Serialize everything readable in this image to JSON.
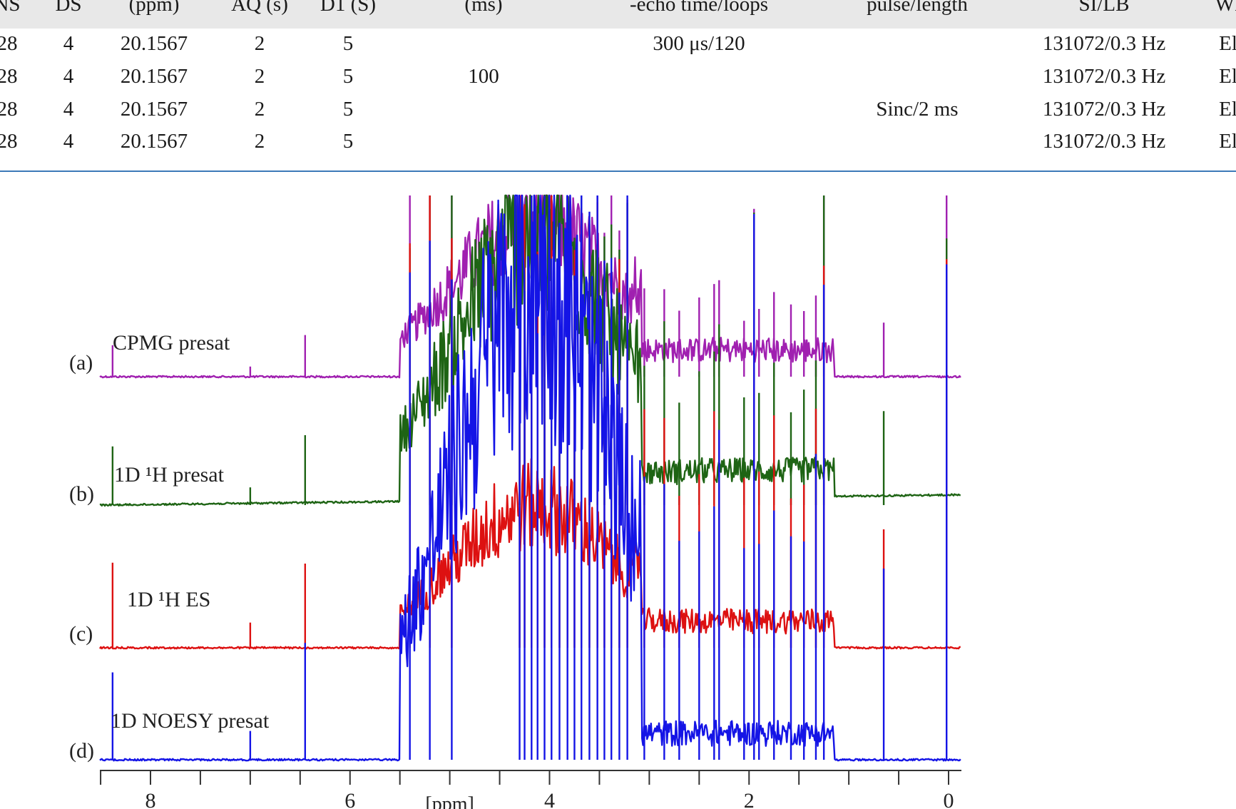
{
  "table": {
    "headers": [
      "NS",
      "DS",
      "(ppm)",
      "AQ (s)",
      "D1 (S)",
      "(ms)",
      "-echo time/loops",
      "pulse/length",
      "SI/LB",
      "WI"
    ],
    "rows": [
      [
        "28",
        "4",
        "20.1567",
        "2",
        "5",
        "",
        "300 μs/120",
        "",
        "131072/0.3 Hz",
        "El"
      ],
      [
        "28",
        "4",
        "20.1567",
        "2",
        "5",
        "100",
        "",
        "",
        "131072/0.3 Hz",
        "El"
      ],
      [
        "28",
        "4",
        "20.1567",
        "2",
        "5",
        "",
        "",
        "Sinc/2 ms",
        "131072/0.3 Hz",
        "El"
      ],
      [
        "28",
        "4",
        "20.1567",
        "2",
        "5",
        "",
        "",
        "",
        "131072/0.3 Hz",
        "El"
      ]
    ]
  },
  "figure": {
    "colors": {
      "a": "#a020b0",
      "b": "#1e6414",
      "c": "#dd1111",
      "d": "#1414e6",
      "axis": "#333333",
      "rule": "#3d7ab8"
    }
  },
  "chart_data": {
    "type": "line",
    "x_axis": {
      "label": "[ppm]",
      "range": [
        8.5,
        -0.1
      ],
      "ticks": [
        "8",
        "6",
        "4",
        "2",
        "0"
      ],
      "reversed": true
    },
    "series": [
      {
        "id": "a",
        "label": "(a)",
        "name": "CPMG presat",
        "color": "#a020b0",
        "peaks_ppm": [
          8.4,
          7.0,
          6.5,
          5.4,
          5.2,
          5.0,
          4.8,
          4.6,
          4.3,
          4.2,
          4.1,
          4.0,
          3.9,
          3.8,
          3.7,
          3.6,
          3.5,
          3.4,
          3.3,
          3.2,
          3.0,
          2.8,
          2.6,
          2.4,
          2.2,
          2.0,
          1.9,
          1.8,
          1.6,
          1.4,
          1.3,
          0.6,
          0.0
        ]
      },
      {
        "id": "b",
        "label": "(b)",
        "name": "1D ¹H presat",
        "color": "#1e6414",
        "peaks_ppm": [
          8.4,
          7.0,
          6.5,
          5.4,
          5.2,
          5.0,
          4.8,
          4.6,
          4.3,
          4.2,
          4.1,
          4.0,
          3.9,
          3.8,
          3.7,
          3.6,
          3.5,
          3.4,
          3.3,
          3.2,
          3.0,
          2.8,
          2.6,
          2.4,
          2.2,
          2.0,
          1.9,
          1.8,
          1.6,
          1.4,
          1.3,
          0.6,
          0.0
        ]
      },
      {
        "id": "c",
        "label": "(c)",
        "name": "1D ¹H ES",
        "color": "#dd1111",
        "peaks_ppm": [
          8.4,
          7.0,
          6.5,
          5.4,
          5.2,
          5.0,
          4.8,
          4.6,
          4.3,
          4.2,
          4.1,
          4.0,
          3.9,
          3.8,
          3.7,
          3.6,
          3.5,
          3.4,
          3.3,
          3.2,
          3.0,
          2.8,
          2.6,
          2.4,
          2.2,
          2.0,
          1.9,
          1.8,
          1.6,
          1.4,
          1.3,
          0.6,
          0.0
        ]
      },
      {
        "id": "d",
        "label": "(d)",
        "name": "1D NOESY presat",
        "color": "#1414e6",
        "peaks_ppm": [
          8.4,
          7.0,
          6.5,
          5.4,
          5.2,
          5.0,
          4.8,
          4.6,
          4.3,
          4.2,
          4.1,
          4.0,
          3.9,
          3.8,
          3.7,
          3.6,
          3.5,
          3.4,
          3.3,
          3.2,
          3.0,
          2.8,
          2.6,
          2.4,
          2.2,
          2.0,
          1.9,
          1.8,
          1.6,
          1.4,
          1.3,
          0.6,
          0.0
        ]
      }
    ]
  }
}
